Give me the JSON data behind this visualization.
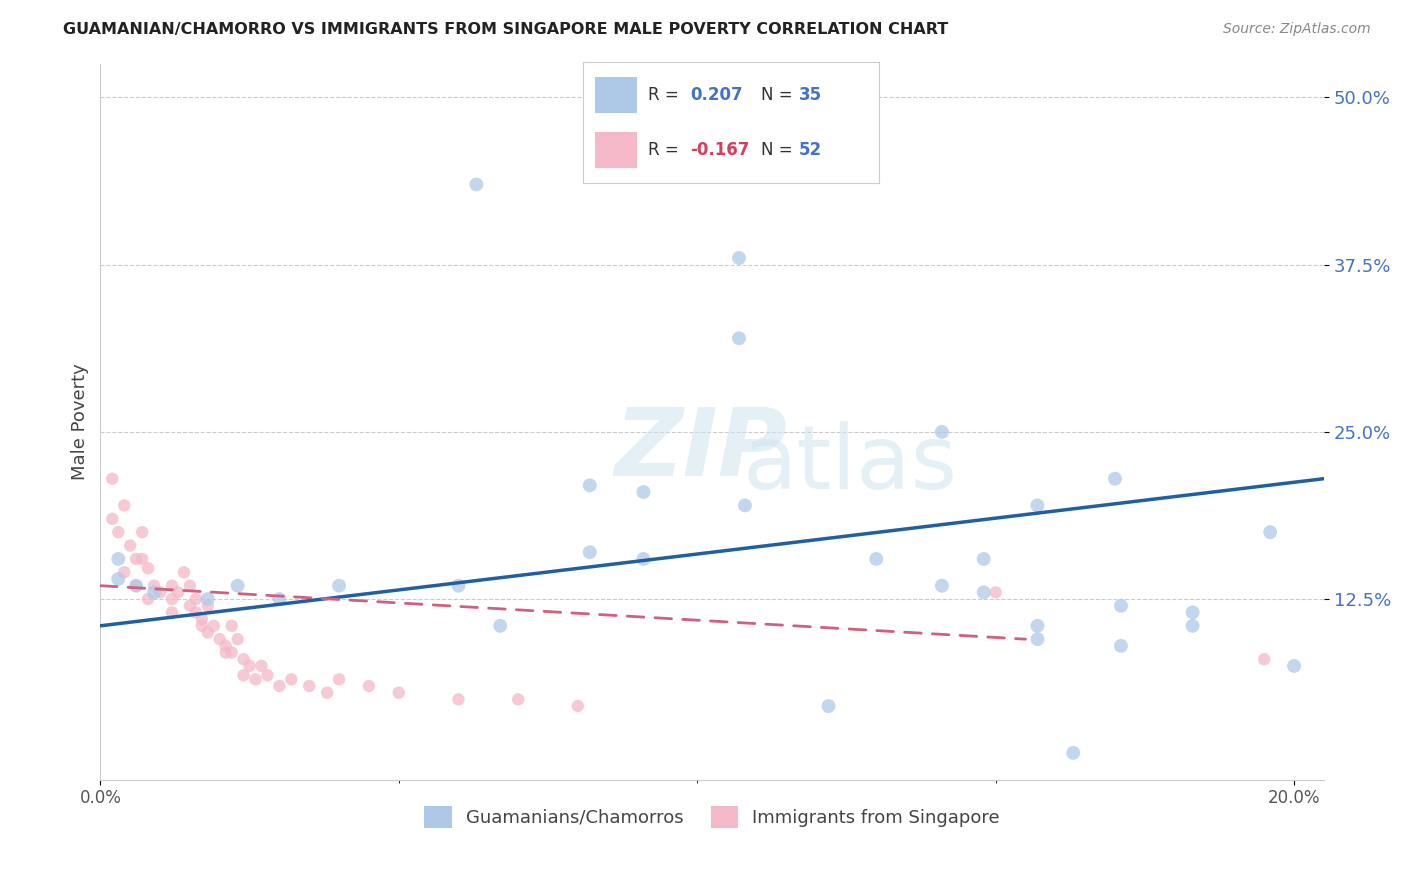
{
  "title": "GUAMANIAN/CHAMORRO VS IMMIGRANTS FROM SINGAPORE MALE POVERTY CORRELATION CHART",
  "source": "Source: ZipAtlas.com",
  "ylabel": "Male Poverty",
  "xlim": [
    0.0,
    0.205
  ],
  "ylim": [
    -0.01,
    0.525
  ],
  "watermark_line1": "ZIP",
  "watermark_line2": "atlas",
  "legend_r1_label": "R = ",
  "legend_r1_val": "0.207",
  "legend_n1_label": "N = ",
  "legend_n1_val": "35",
  "legend_r2_label": "R = ",
  "legend_r2_val": "-0.167",
  "legend_n2_label": "N = ",
  "legend_n2_val": "52",
  "color_blue": "#aec9e8",
  "color_pink": "#f4b8c8",
  "line_blue": "#2060a0",
  "line_pink": "#d06080",
  "legend_label1": "Guamanians/Chamorros",
  "legend_label2": "Immigrants from Singapore",
  "ytick_vals": [
    0.125,
    0.25,
    0.375,
    0.5
  ],
  "ytick_labels": [
    "12.5%",
    "25.0%",
    "37.5%",
    "50.0%"
  ],
  "blue_line_x": [
    0.0,
    0.205
  ],
  "blue_line_y": [
    0.105,
    0.215
  ],
  "pink_line_x": [
    0.0,
    0.155
  ],
  "pink_line_y": [
    0.135,
    0.095
  ],
  "blue_points": [
    [
      0.063,
      0.435
    ],
    [
      0.107,
      0.38
    ],
    [
      0.107,
      0.32
    ],
    [
      0.141,
      0.25
    ],
    [
      0.082,
      0.21
    ],
    [
      0.091,
      0.205
    ],
    [
      0.108,
      0.195
    ],
    [
      0.13,
      0.155
    ],
    [
      0.148,
      0.155
    ],
    [
      0.157,
      0.195
    ],
    [
      0.17,
      0.215
    ],
    [
      0.196,
      0.175
    ],
    [
      0.082,
      0.16
    ],
    [
      0.091,
      0.155
    ],
    [
      0.141,
      0.135
    ],
    [
      0.148,
      0.13
    ],
    [
      0.06,
      0.135
    ],
    [
      0.023,
      0.135
    ],
    [
      0.03,
      0.125
    ],
    [
      0.018,
      0.125
    ],
    [
      0.009,
      0.13
    ],
    [
      0.006,
      0.135
    ],
    [
      0.003,
      0.14
    ],
    [
      0.003,
      0.155
    ],
    [
      0.171,
      0.12
    ],
    [
      0.157,
      0.105
    ],
    [
      0.157,
      0.095
    ],
    [
      0.171,
      0.09
    ],
    [
      0.183,
      0.105
    ],
    [
      0.183,
      0.115
    ],
    [
      0.2,
      0.075
    ],
    [
      0.067,
      0.105
    ],
    [
      0.122,
      0.045
    ],
    [
      0.163,
      0.01
    ],
    [
      0.04,
      0.135
    ]
  ],
  "pink_points": [
    [
      0.002,
      0.215
    ],
    [
      0.002,
      0.185
    ],
    [
      0.003,
      0.175
    ],
    [
      0.004,
      0.195
    ],
    [
      0.005,
      0.165
    ],
    [
      0.007,
      0.175
    ],
    [
      0.007,
      0.155
    ],
    [
      0.009,
      0.135
    ],
    [
      0.01,
      0.13
    ],
    [
      0.012,
      0.135
    ],
    [
      0.012,
      0.125
    ],
    [
      0.012,
      0.115
    ],
    [
      0.013,
      0.13
    ],
    [
      0.014,
      0.145
    ],
    [
      0.015,
      0.135
    ],
    [
      0.015,
      0.12
    ],
    [
      0.016,
      0.125
    ],
    [
      0.016,
      0.115
    ],
    [
      0.017,
      0.11
    ],
    [
      0.017,
      0.105
    ],
    [
      0.018,
      0.12
    ],
    [
      0.018,
      0.1
    ],
    [
      0.019,
      0.105
    ],
    [
      0.02,
      0.095
    ],
    [
      0.021,
      0.09
    ],
    [
      0.021,
      0.085
    ],
    [
      0.022,
      0.105
    ],
    [
      0.022,
      0.085
    ],
    [
      0.023,
      0.095
    ],
    [
      0.024,
      0.08
    ],
    [
      0.024,
      0.068
    ],
    [
      0.025,
      0.075
    ],
    [
      0.026,
      0.065
    ],
    [
      0.027,
      0.075
    ],
    [
      0.028,
      0.068
    ],
    [
      0.03,
      0.06
    ],
    [
      0.032,
      0.065
    ],
    [
      0.035,
      0.06
    ],
    [
      0.038,
      0.055
    ],
    [
      0.04,
      0.065
    ],
    [
      0.045,
      0.06
    ],
    [
      0.05,
      0.055
    ],
    [
      0.06,
      0.05
    ],
    [
      0.07,
      0.05
    ],
    [
      0.08,
      0.045
    ],
    [
      0.004,
      0.145
    ],
    [
      0.006,
      0.155
    ],
    [
      0.006,
      0.135
    ],
    [
      0.008,
      0.148
    ],
    [
      0.008,
      0.125
    ],
    [
      0.15,
      0.13
    ],
    [
      0.195,
      0.08
    ]
  ],
  "dot_size_blue": 100,
  "dot_size_pink": 80,
  "dot_alpha": 0.75
}
